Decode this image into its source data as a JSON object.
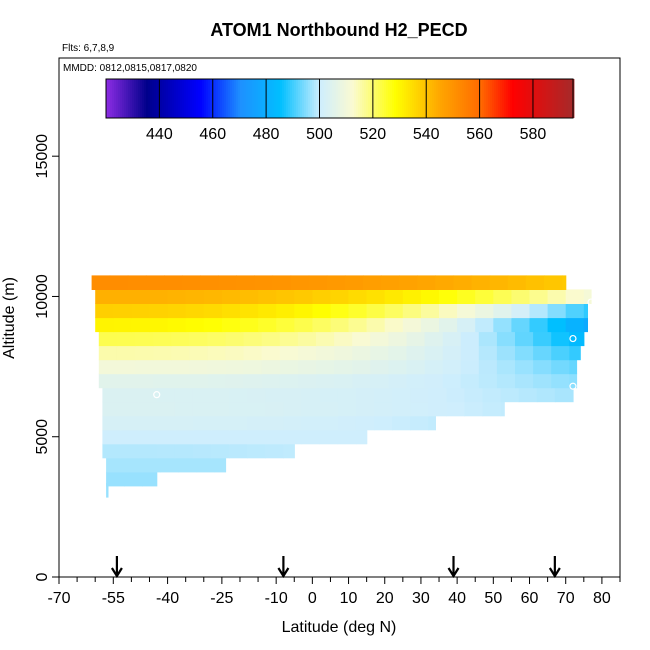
{
  "chart_data": {
    "type": "heatmap",
    "title": "ATOM1 Northbound H2_PECD",
    "flights_note": "Flts: 6,7,8,9",
    "dates_note": "MMDD: 0812,0815,0817,0820",
    "xlabel": "Latitude (deg N)",
    "ylabel": "Altitude (m)",
    "xlim": [
      -70,
      85
    ],
    "ylim": [
      0,
      18500
    ],
    "x_ticks": [
      -70,
      -55,
      -40,
      -25,
      -10,
      0,
      10,
      20,
      30,
      40,
      50,
      60,
      70,
      80
    ],
    "x_tick_labels": [
      "-70",
      "-55",
      "-40",
      "-25",
      "-10",
      "0",
      "10",
      "20",
      "30",
      "40",
      "50",
      "60",
      "70",
      "80"
    ],
    "x_minor_ticks": [
      -65,
      -60,
      -50,
      -45,
      -35,
      -30,
      -20,
      -15,
      -5,
      5,
      15,
      25,
      35,
      45,
      55,
      65,
      75,
      85
    ],
    "y_ticks": [
      0,
      5000,
      10000,
      15000
    ],
    "y_tick_labels": [
      "0",
      "5000",
      "10000",
      "15000"
    ],
    "colorbar": {
      "range": [
        420,
        595
      ],
      "ticks": [
        440,
        460,
        480,
        500,
        520,
        540,
        560,
        580
      ],
      "tick_labels": [
        "440",
        "460",
        "480",
        "500",
        "520",
        "540",
        "560",
        "580"
      ],
      "stops": [
        {
          "v": 420,
          "c": "#8a2be2"
        },
        {
          "v": 435,
          "c": "#00008b"
        },
        {
          "v": 455,
          "c": "#0000ff"
        },
        {
          "v": 470,
          "c": "#1e90ff"
        },
        {
          "v": 485,
          "c": "#00bfff"
        },
        {
          "v": 500,
          "c": "#cfeefd"
        },
        {
          "v": 512,
          "c": "#fafad2"
        },
        {
          "v": 528,
          "c": "#ffff00"
        },
        {
          "v": 545,
          "c": "#ffa500"
        },
        {
          "v": 560,
          "c": "#ff6a00"
        },
        {
          "v": 572,
          "c": "#ff0000"
        },
        {
          "v": 595,
          "c": "#a52a2a"
        }
      ]
    },
    "profile_markers_lat": [
      -54,
      -8,
      39,
      67
    ],
    "altitude_levels_m": [
      3100,
      3500,
      4000,
      4500,
      5000,
      5500,
      6000,
      6500,
      7000,
      7500,
      8000,
      8500,
      9000,
      9500,
      10000,
      10500
    ],
    "level_extent": [
      {
        "alt": 3100,
        "lat_min": -57,
        "lat_max": -56.5,
        "v": 496
      },
      {
        "alt": 3500,
        "lat_min": -57,
        "lat_max": -43,
        "v": 496
      },
      {
        "alt": 4000,
        "lat_min": -57,
        "lat_max": -24,
        "v": 497
      },
      {
        "alt": 4500,
        "lat_min": -58,
        "lat_max": -5,
        "v": 498
      },
      {
        "alt": 5000,
        "lat_min": -58,
        "lat_max": 15,
        "v": 500
      },
      {
        "alt": 5500,
        "lat_min": -58,
        "lat_max": 34,
        "v": 502
      },
      {
        "alt": 6000,
        "lat_min": -58,
        "lat_max": 53,
        "v": 503
      },
      {
        "alt": 6500,
        "lat_min": -58,
        "lat_max": 72,
        "v": 503
      },
      {
        "alt": 7000,
        "lat_min": -59,
        "lat_max": 73,
        "v": 505
      },
      {
        "alt": 7500,
        "lat_min": -59,
        "lat_max": 73,
        "v": 510
      },
      {
        "alt": 8000,
        "lat_min": -59,
        "lat_max": 74,
        "v": 515
      },
      {
        "alt": 8500,
        "lat_min": -59,
        "lat_max": 75,
        "v": 522
      },
      {
        "alt": 9000,
        "lat_min": -60,
        "lat_max": 76,
        "v": 530
      },
      {
        "alt": 9500,
        "lat_min": -60,
        "lat_max": 76,
        "v": 537
      },
      {
        "alt": 10000,
        "lat_min": -60,
        "lat_max": 77,
        "v": 543
      },
      {
        "alt": 10500,
        "lat_min": -61,
        "lat_max": 70,
        "v": 551
      }
    ],
    "latitude_gradient": [
      {
        "alt": 3100,
        "north_end_v": 496
      },
      {
        "alt": 3500,
        "north_end_v": 496
      },
      {
        "alt": 4000,
        "north_end_v": 497
      },
      {
        "alt": 4500,
        "north_end_v": 499
      },
      {
        "alt": 5000,
        "north_end_v": 500
      },
      {
        "alt": 5500,
        "north_end_v": 499
      },
      {
        "alt": 6000,
        "north_end_v": 499
      },
      {
        "alt": 6500,
        "north_end_v": 497
      },
      {
        "alt": 7000,
        "north_end_v": 495
      },
      {
        "alt": 7500,
        "north_end_v": 492
      },
      {
        "alt": 8000,
        "north_end_v": 488
      },
      {
        "alt": 8500,
        "north_end_v": 482
      },
      {
        "alt": 9000,
        "north_end_v": 478
      },
      {
        "alt": 9500,
        "north_end_v": 488
      },
      {
        "alt": 10000,
        "north_end_v": 510
      },
      {
        "alt": 10500,
        "north_end_v": 538
      }
    ],
    "open_circle_points": [
      {
        "lat": -43,
        "alt": 6500
      },
      {
        "lat": 72,
        "alt": 6800
      },
      {
        "lat": 72,
        "alt": 8500
      },
      {
        "lat": 77,
        "alt": 9800
      }
    ]
  }
}
